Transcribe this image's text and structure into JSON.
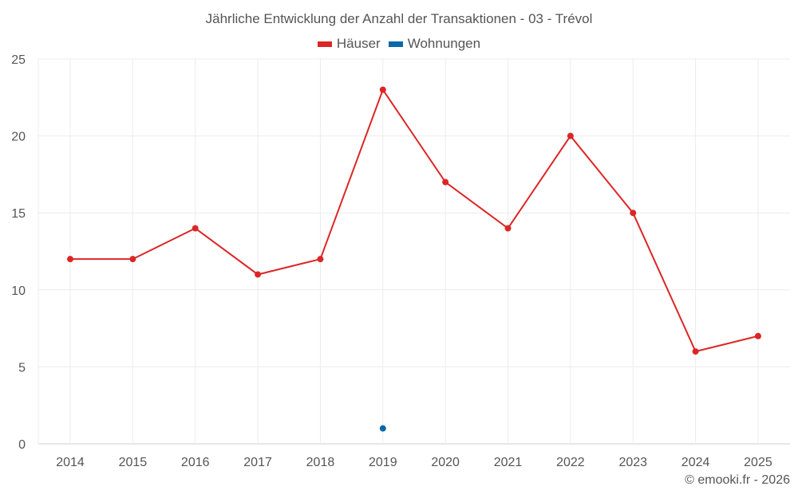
{
  "chart_data": {
    "type": "line",
    "title": "Jährliche Entwicklung der Anzahl der Transaktionen - 03 - Trévol",
    "xlabel": "",
    "ylabel": "",
    "x": [
      "2014",
      "2015",
      "2016",
      "2017",
      "2018",
      "2019",
      "2020",
      "2021",
      "2022",
      "2023",
      "2024",
      "2025"
    ],
    "ylim": [
      0,
      25
    ],
    "yticks": [
      0,
      5,
      10,
      15,
      20,
      25
    ],
    "grid": true,
    "legend_position": "top-center",
    "series": [
      {
        "name": "Häuser",
        "color": "#dc2626",
        "values": [
          12,
          12,
          14,
          11,
          12,
          23,
          17,
          14,
          20,
          15,
          6,
          7
        ]
      },
      {
        "name": "Wohnungen",
        "color": "#0868a8",
        "values": [
          null,
          null,
          null,
          null,
          null,
          1,
          null,
          null,
          null,
          null,
          null,
          null
        ]
      }
    ]
  },
  "credit": "© emooki.fr - 2026"
}
